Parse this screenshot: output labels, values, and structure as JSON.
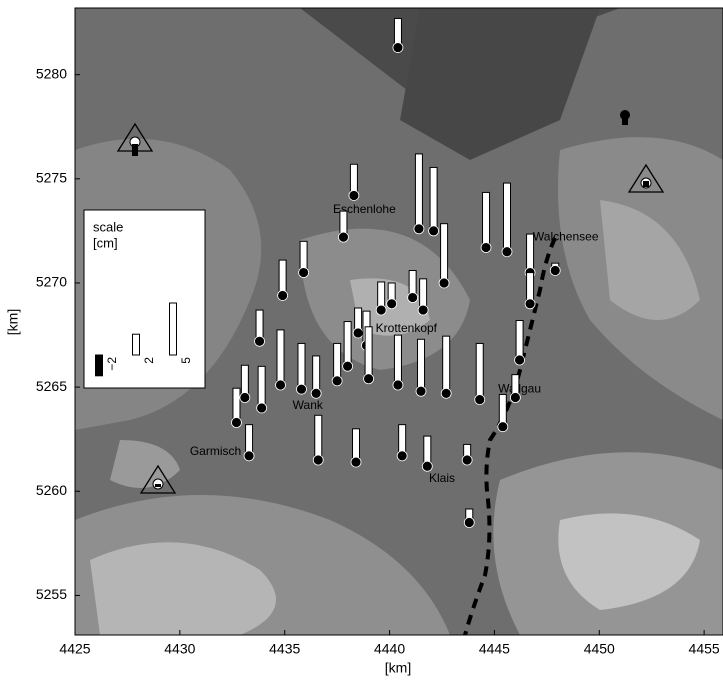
{
  "chart_data": {
    "type": "bar-map",
    "xlabel": "[km]",
    "ylabel": "[km]",
    "xlim": [
      4425,
      4455.9
    ],
    "ylim": [
      5253.1,
      5283.2
    ],
    "xticks": [
      4425,
      4430,
      4435,
      4440,
      4445,
      4450,
      4455
    ],
    "yticks": [
      5255,
      5260,
      5265,
      5270,
      5275,
      5280
    ],
    "places": [
      {
        "name": "Eschenlohe",
        "x": 4438.8,
        "y": 5273.5
      },
      {
        "name": "Walchensee",
        "x": 4448.4,
        "y": 5272.2
      },
      {
        "name": "Krottenkopf",
        "x": 4440.8,
        "y": 5267.8
      },
      {
        "name": "Wallgau",
        "x": 4446.2,
        "y": 5264.9
      },
      {
        "name": "Wank",
        "x": 4436.1,
        "y": 5264.1
      },
      {
        "name": "Garmisch",
        "x": 4431.7,
        "y": 5261.9
      },
      {
        "name": "Klais",
        "x": 4442.5,
        "y": 5260.6
      }
    ],
    "stations": {
      "x": [
        4440.4,
        4438.3,
        4437.8,
        4441.4,
        4442.1,
        4442.6,
        4444.6,
        4445.6,
        4446.7,
        4447.9,
        4446.7,
        4434.9,
        4435.9,
        4433.8,
        4433.9,
        4439.6,
        4440.1,
        4441.1,
        4441.6,
        4438.5,
        4438.9,
        4437.5,
        4438.0,
        4439.0,
        4440.4,
        4441.5,
        4442.7,
        4444.3,
        4445.4,
        4446.0,
        4446.2,
        4435.8,
        4436.5,
        4432.7,
        4433.1,
        4433.3,
        4436.6,
        4438.4,
        4440.6,
        4441.8,
        4443.7,
        4443.8,
        4434.8
      ],
      "y": [
        5281.3,
        5274.2,
        5272.2,
        5272.6,
        5272.5,
        5270.0,
        5271.7,
        5271.5,
        5270.5,
        5270.6,
        5269.0,
        5269.4,
        5270.5,
        5267.2,
        5264.0,
        5268.7,
        5269.0,
        5269.3,
        5268.7,
        5267.6,
        5267.0,
        5265.3,
        5266.0,
        5265.4,
        5265.1,
        5264.8,
        5264.7,
        5264.4,
        5263.1,
        5264.5,
        5266.3,
        5264.9,
        5264.7,
        5263.3,
        5264.5,
        5261.7,
        5261.5,
        5261.4,
        5261.7,
        5261.2,
        5261.5,
        5258.5,
        5265.1
      ],
      "values": [
        2.8,
        3.0,
        2.5,
        7.2,
        6.1,
        5.7,
        5.3,
        6.6,
        3.7,
        0.7,
        3.0,
        3.4,
        3.0,
        3.0,
        4.0,
        2.7,
        2.0,
        2.6,
        3.0,
        2.4,
        3.3,
        3.6,
        4.3,
        5.0,
        4.8,
        5.0,
        5.5,
        5.4,
        3.1,
        2.2,
        3.8,
        4.4,
        3.6,
        3.3,
        3.1,
        3.0,
        4.3,
        3.2,
        3.0,
        2.9,
        1.5,
        1.3,
        5.3
      ]
    },
    "legend": {
      "title": "scale",
      "unit": "[cm]",
      "entries": [
        {
          "value": -2,
          "label": "−2"
        },
        {
          "value": 2,
          "label": "2"
        },
        {
          "value": 5,
          "label": "5"
        }
      ]
    }
  }
}
